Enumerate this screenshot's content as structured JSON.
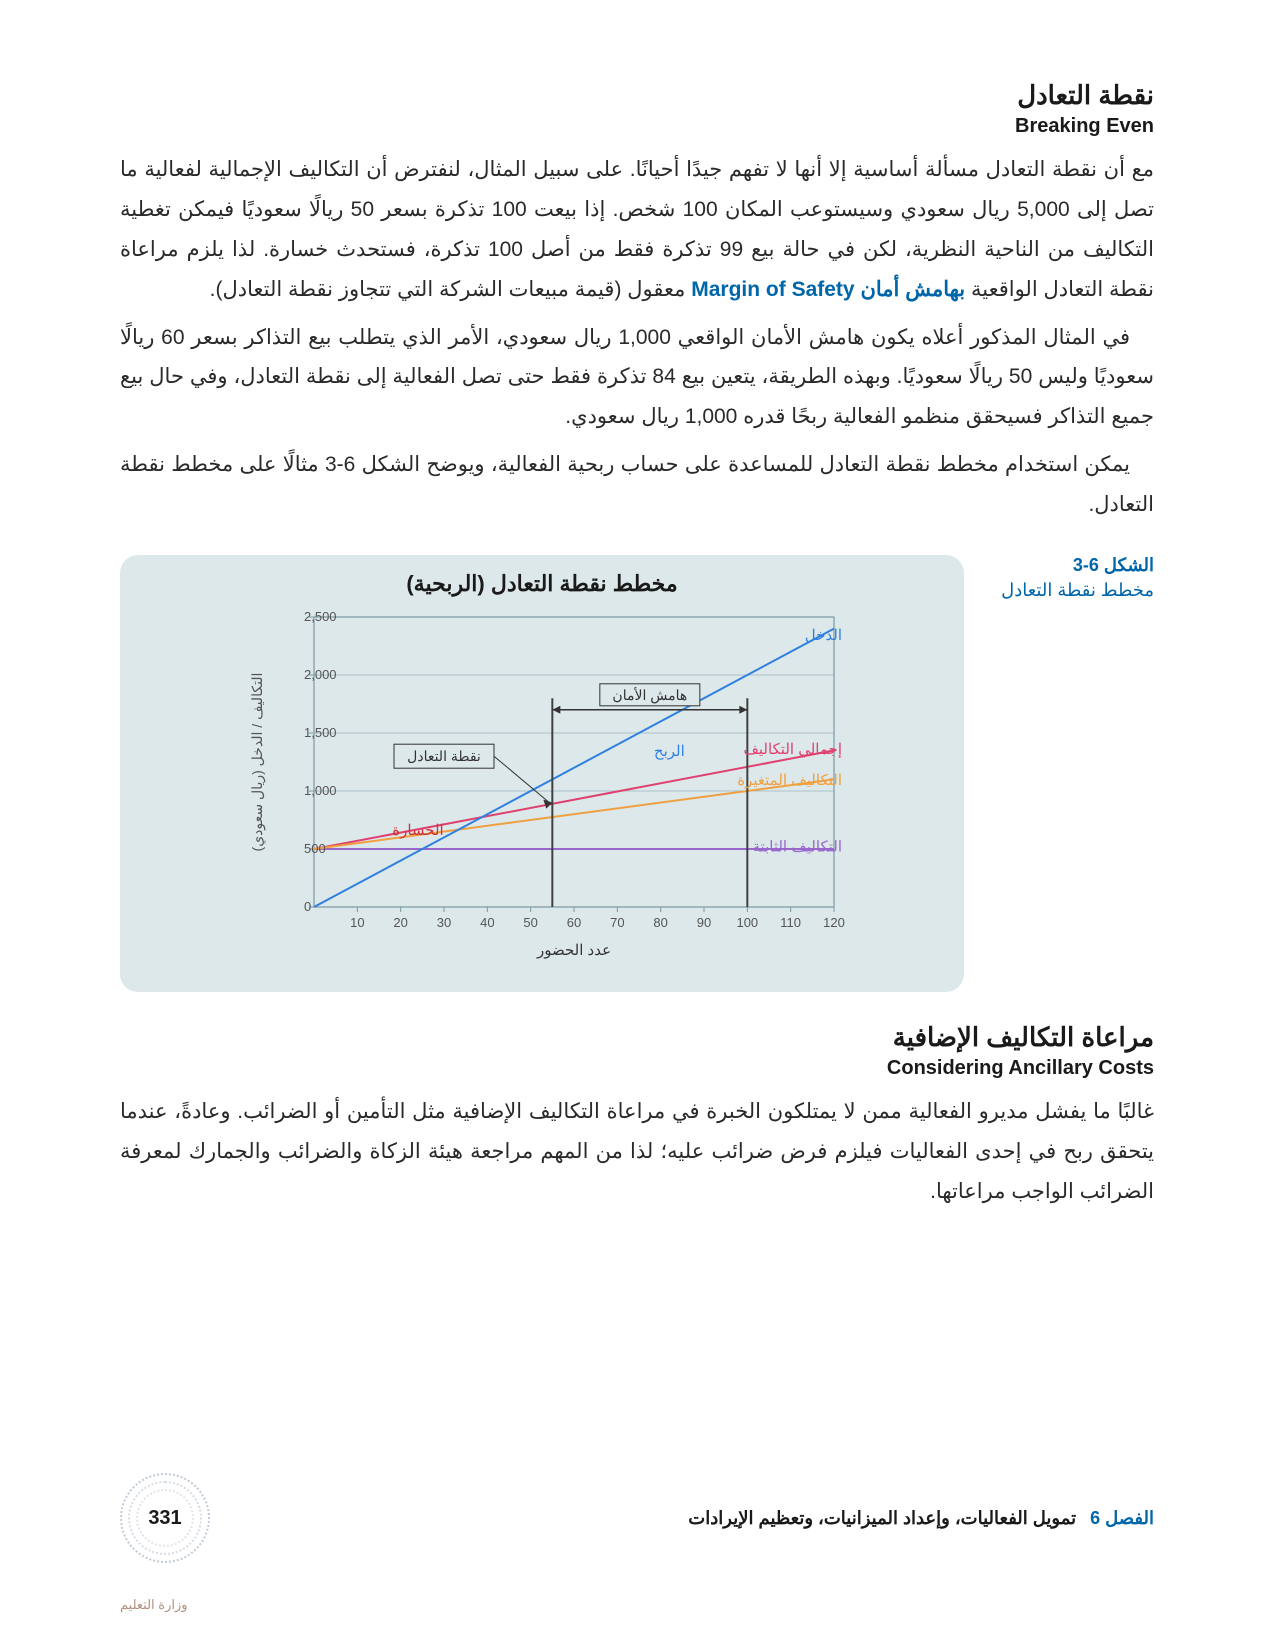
{
  "section1": {
    "heading_ar": "نقطة التعادل",
    "heading_en": "Breaking Even",
    "para1_a": "مع أن نقطة التعادل مسألة أساسية إلا أنها لا تفهم جيدًا أحيانًا. على سبيل المثال، لنفترض أن التكاليف الإجمالية لفعالية ما تصل إلى 5,000 ريال سعودي وسيستوعب المكان 100 شخص. إذا بيعت 100 تذكرة بسعر 50 ريالًا سعوديًا فيمكن تغطية التكاليف من الناحية النظرية، لكن في حالة بيع 99 تذكرة فقط من أصل 100 تذكرة، فستحدث خسارة. لذا يلزم مراعاة نقطة التعادل الواقعية ",
    "term_ar": "بهامش أمان",
    "term_en": "Margin of Safety",
    "para1_b": " معقول (قيمة مبيعات الشركة التي تتجاوز نقطة التعادل).",
    "para2": "في المثال المذكور أعلاه يكون هامش الأمان الواقعي 1,000 ريال سعودي، الأمر الذي يتطلب بيع التذاكر بسعر 60 ريالًا سعوديًا وليس 50 ريالًا سعوديًا. وبهذه الطريقة، يتعين بيع 84 تذكرة فقط حتى تصل الفعالية إلى نقطة التعادل، وفي حال بيع جميع التذاكر فسيحقق منظمو الفعالية ربحًا قدره 1,000 ريال سعودي.",
    "para3": "يمكن استخدام مخطط نقطة التعادل للمساعدة على حساب ربحية الفعالية، ويوضح الشكل 6-3 مثالًا على مخطط نقطة التعادل."
  },
  "figure": {
    "number": "الشكل 6-3",
    "caption": "مخطط نقطة التعادل",
    "chart_title": "مخطط نقطة التعادل (الربحية)",
    "xlabel": "عدد الحضور",
    "ylabel": "التكاليف / الدخل (ريال سعودي)",
    "x_ticks": [
      10,
      20,
      30,
      40,
      50,
      60,
      70,
      80,
      90,
      100,
      110,
      120
    ],
    "y_ticks": [
      0,
      500,
      "1,000",
      "1,500",
      "2,000",
      "2,500"
    ],
    "y_values": [
      0,
      500,
      1000,
      1500,
      2000,
      2500
    ],
    "xlim": [
      0,
      120
    ],
    "ylim": [
      0,
      2500
    ],
    "fixed_cost": 500,
    "variable_cost_start": 500,
    "variable_cost_end_x": 120,
    "variable_cost_end_y": 1350,
    "income_start": 0,
    "income_end_x": 120,
    "income_end_y": 2400,
    "break_even_x": 55,
    "safety_x": 100,
    "colors": {
      "background": "#dce8ea",
      "grid": "#7a9aa0",
      "fixed": "#9966cc",
      "variable": "#f0a040",
      "total": "#e04070",
      "income": "#3080e0",
      "loss": "#d03030",
      "profit": "#3080e0",
      "vert": "#404040"
    },
    "labels": {
      "income": "الدخل",
      "total_cost": "إجمالي التكاليف",
      "variable_cost": "التكاليف المتغيرة",
      "fixed_cost": "التكاليف الثابتة",
      "loss": "الخسارة",
      "profit": "الربح",
      "break_even": "نقطة التعادل",
      "safety": "هامش الأمان"
    }
  },
  "section2": {
    "heading_ar": "مراعاة التكاليف الإضافية",
    "heading_en": "Considering Ancillary Costs",
    "para1": "غالبًا ما يفشل مديرو الفعالية ممن لا يمتلكون الخبرة في مراعاة التكاليف الإضافية مثل التأمين أو الضرائب. وعادةً، عندما يتحقق ربح في إحدى الفعاليات فيلزم فرض ضرائب عليه؛ لذا من المهم مراجعة هيئة الزكاة والضرائب والجمارك لمعرفة الضرائب الواجب مراعاتها."
  },
  "footer": {
    "chapter_label": "الفصل 6",
    "chapter_title": "تمويل الفعاليات، وإعداد الميزانيات، وتعظيم الإيرادات",
    "page_number": "331",
    "ministry": "وزارة التعليم"
  }
}
